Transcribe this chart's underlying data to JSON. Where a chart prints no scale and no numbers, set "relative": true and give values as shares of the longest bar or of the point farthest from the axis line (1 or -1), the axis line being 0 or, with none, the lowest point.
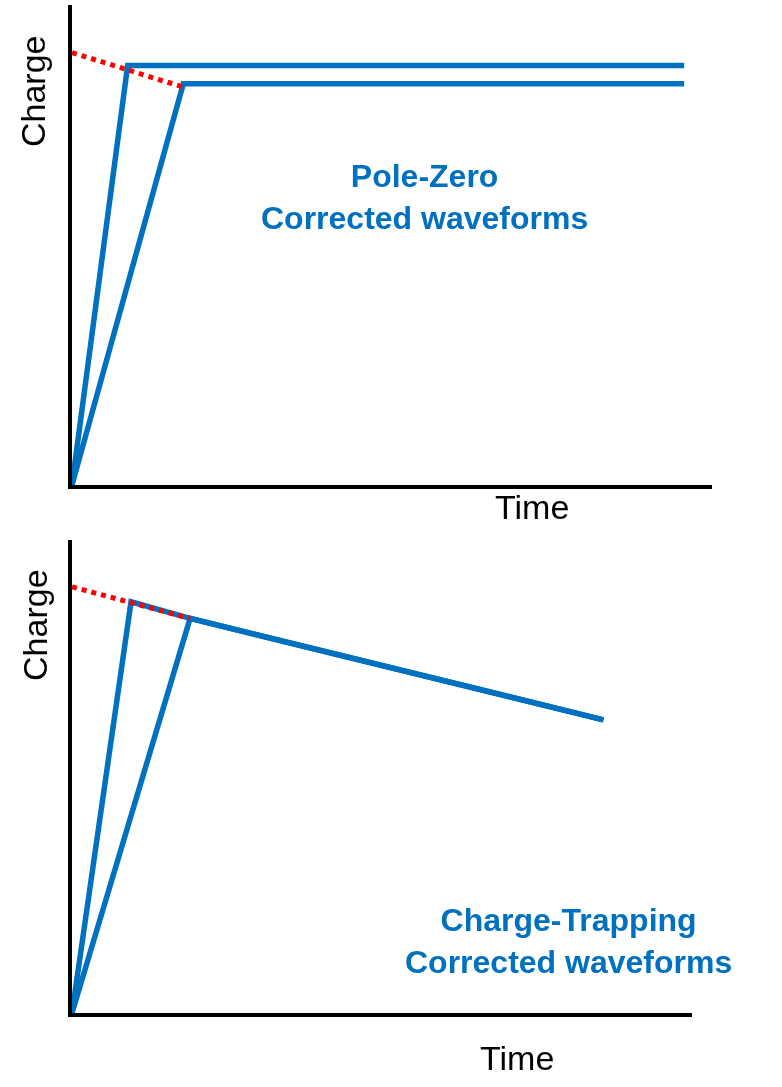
{
  "chart_data": [
    {
      "type": "line",
      "relative": true,
      "xlabel": "Time",
      "ylabel": "Charge",
      "annotations": [
        "Pole-Zero\nCorrected waveforms"
      ],
      "tick_labels": false,
      "marker": "none",
      "categories": [
        null,
        null,
        null,
        null,
        null,
        null,
        null,
        null,
        null,
        null,
        null,
        null
      ],
      "series": [
        {
          "color": "#0070c0",
          "values": [
            0,
            0.97,
            null,
            null,
            null,
            null,
            null,
            null,
            null,
            null,
            null,
            0.97
          ],
          "line_style": "solid"
        },
        {
          "color": "#0070c0",
          "values": [
            0,
            null,
            0.928,
            null,
            null,
            null,
            null,
            null,
            null,
            null,
            null,
            0.928
          ],
          "line_style": "solid"
        },
        {
          "color": "#ff0000",
          "values": [
            1,
            null,
            0.92,
            null,
            null,
            null,
            null,
            null,
            null,
            null,
            null,
            null
          ],
          "line_style": "dotted"
        }
      ]
    },
    {
      "type": "line",
      "relative": true,
      "xlabel": "Time",
      "ylabel": "Charge",
      "annotations": [
        "Charge-Trapping\nCorrected waveforms"
      ],
      "tick_labels": false,
      "marker": "none",
      "categories": [
        null,
        null,
        null,
        null,
        null,
        null,
        null,
        null,
        null,
        null,
        null
      ],
      "series": [
        {
          "color": "#0070c0",
          "values": [
            0,
            0.965,
            0.926,
            null,
            null,
            null,
            null,
            null,
            null,
            0.688,
            null
          ],
          "line_style": "solid"
        },
        {
          "color": "#0070c0",
          "values": [
            0,
            null,
            0.926,
            null,
            null,
            null,
            null,
            null,
            null,
            0.688,
            null
          ],
          "line_style": "solid"
        },
        {
          "color": "#ff0000",
          "values": [
            1,
            null,
            0.926,
            null,
            null,
            null,
            null,
            null,
            null,
            null,
            null
          ],
          "line_style": "dotted"
        }
      ]
    }
  ]
}
